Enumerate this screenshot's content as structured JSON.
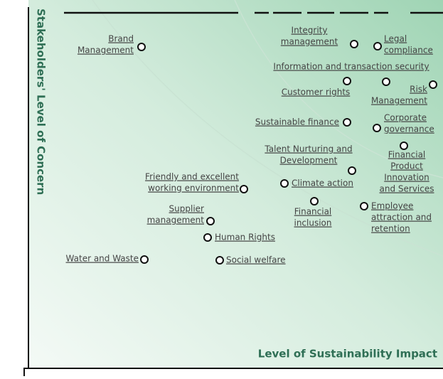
{
  "y_axis_label": "Stakeholders' Level of Concern",
  "x_axis_label": "Level of Sustainability Impact",
  "nodes": [
    {
      "lines": [
        "Brand",
        "Management"
      ]
    },
    {
      "lines": [
        "Integrity",
        "management"
      ]
    },
    {
      "lines": [
        "Legal",
        "compliance"
      ]
    },
    {
      "lines": [
        "Information and transaction security"
      ]
    },
    {
      "lines": [
        "Customer rights"
      ]
    },
    {
      "lines": [
        "Risk",
        "Management"
      ]
    },
    {
      "lines": [
        "Sustainable finance"
      ]
    },
    {
      "lines": [
        "Corporate",
        "governance"
      ]
    },
    {
      "lines": [
        "Talent Nurturing and",
        "Development"
      ]
    },
    {
      "lines": [
        "Financial",
        "Product",
        "Innovation",
        "and Services"
      ]
    },
    {
      "lines": [
        "Friendly and excellent",
        "working environment"
      ]
    },
    {
      "lines": [
        "Climate action"
      ]
    },
    {
      "lines": [
        "Financial",
        "inclusion"
      ]
    },
    {
      "lines": [
        "Employee",
        "attraction and",
        "retention"
      ]
    },
    {
      "lines": [
        "Supplier",
        "management"
      ]
    },
    {
      "lines": [
        "Human Rights"
      ]
    },
    {
      "lines": [
        "Water and Waste"
      ]
    },
    {
      "lines": [
        "Social welfare"
      ]
    }
  ]
}
